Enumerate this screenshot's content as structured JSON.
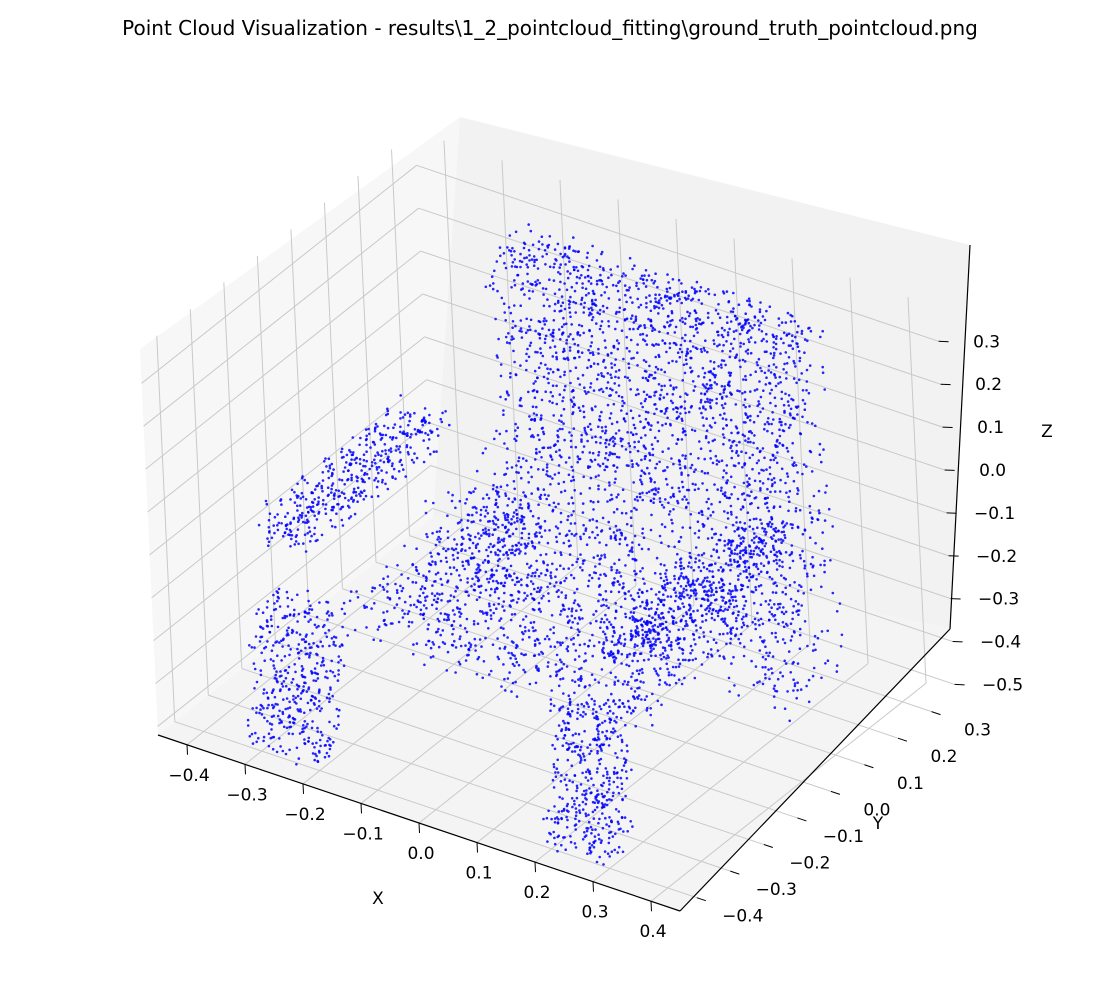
{
  "chart_data": {
    "type": "scatter",
    "projection": "3d",
    "title": "Point Cloud Visualization - results\\1_2_pointcloud_fitting\\ground_truth_pointcloud.png",
    "xlabel": "X",
    "ylabel": "Y",
    "zlabel": "Z",
    "xlim": [
      -0.45,
      0.45
    ],
    "ylim": [
      -0.45,
      0.37
    ],
    "zlim": [
      -0.52,
      0.38
    ],
    "x_ticks": [
      "−0.4",
      "−0.3",
      "−0.2",
      "−0.1",
      "0.0",
      "0.1",
      "0.2",
      "0.3",
      "0.4"
    ],
    "y_ticks": [
      "−0.4",
      "−0.3",
      "−0.2",
      "−0.1",
      "0.0",
      "0.1",
      "0.2",
      "0.3"
    ],
    "z_ticks": [
      "−0.5",
      "−0.4",
      "−0.3",
      "−0.2",
      "−0.1",
      "0.0",
      "0.1",
      "0.2",
      "0.3"
    ],
    "grid": true,
    "marker_color": "#0000ff",
    "subject": "chair-shaped point cloud",
    "components": [
      {
        "part": "seat",
        "x": [
          -0.22,
          0.3
        ],
        "y": [
          -0.3,
          0.2
        ],
        "z": [
          -0.28,
          -0.18
        ],
        "count": 1300
      },
      {
        "part": "backrest",
        "x": [
          -0.22,
          0.3
        ],
        "y": [
          0.16,
          0.3
        ],
        "z": [
          -0.22,
          0.3
        ],
        "count": 1700
      },
      {
        "part": "back-top",
        "x": [
          -0.22,
          0.3
        ],
        "y": [
          0.2,
          0.3
        ],
        "z": [
          0.25,
          0.32
        ],
        "count": 300
      },
      {
        "part": "armrest-left",
        "x": [
          -0.36,
          -0.28
        ],
        "y": [
          -0.3,
          0.16
        ],
        "z": [
          -0.14,
          -0.05
        ],
        "count": 420
      },
      {
        "part": "armrest-right",
        "x": [
          0.23,
          0.31
        ],
        "y": [
          -0.3,
          0.16
        ],
        "z": [
          -0.14,
          -0.05
        ],
        "count": 380
      },
      {
        "part": "leg-front-left",
        "x": [
          -0.33,
          -0.2
        ],
        "y": [
          -0.36,
          -0.28
        ],
        "z": [
          -0.52,
          -0.2
        ],
        "count": 420
      },
      {
        "part": "leg-front-right",
        "x": [
          0.18,
          0.3
        ],
        "y": [
          -0.36,
          -0.28
        ],
        "z": [
          -0.52,
          -0.2
        ],
        "count": 420
      },
      {
        "part": "leg-back-left",
        "x": [
          -0.3,
          -0.16
        ],
        "y": [
          0.08,
          0.3
        ],
        "z": [
          -0.52,
          -0.22
        ],
        "count": 220
      },
      {
        "part": "leg-back-right",
        "x": [
          0.18,
          0.3
        ],
        "y": [
          0.08,
          0.3
        ],
        "z": [
          -0.52,
          -0.22
        ],
        "count": 220
      }
    ]
  }
}
